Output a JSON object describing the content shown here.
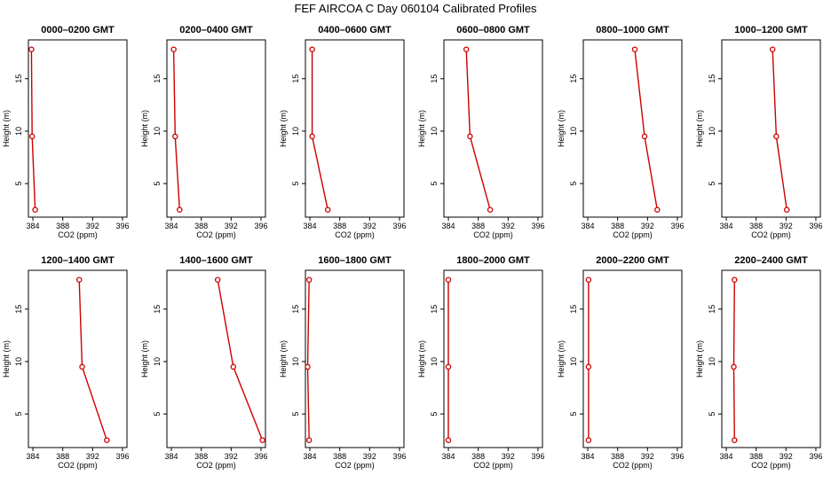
{
  "figure": {
    "title": "FEF AIRCOA C  Day 060104  Calibrated Profiles"
  },
  "colors": {
    "series": "#cc0000",
    "axis": "#000000"
  },
  "chart_data": [
    {
      "type": "line",
      "title": "0000–0200 GMT",
      "xlabel": "CO2 (ppm)",
      "ylabel": "Height (m)",
      "xlim": [
        383.4,
        396.6
      ],
      "ylim": [
        1.8,
        18.7
      ],
      "xticks": [
        "384",
        "388",
        "392",
        "396"
      ],
      "yticks": [
        "5",
        "10",
        "15"
      ],
      "series": [
        {
          "x": [
            384.3,
            383.9,
            383.8
          ],
          "y": [
            2.5,
            9.5,
            17.8
          ]
        }
      ]
    },
    {
      "type": "line",
      "title": "0200–0400 GMT",
      "xlabel": "CO2 (ppm)",
      "ylabel": "Height (m)",
      "xlim": [
        383.4,
        396.6
      ],
      "ylim": [
        1.8,
        18.7
      ],
      "xticks": [
        "384",
        "388",
        "392",
        "396"
      ],
      "yticks": [
        "5",
        "10",
        "15"
      ],
      "series": [
        {
          "x": [
            385.1,
            384.5,
            384.3
          ],
          "y": [
            2.5,
            9.5,
            17.8
          ]
        }
      ]
    },
    {
      "type": "line",
      "title": "0400–0600 GMT",
      "xlabel": "CO2 (ppm)",
      "ylabel": "Height (m)",
      "xlim": [
        383.4,
        396.6
      ],
      "ylim": [
        1.8,
        18.7
      ],
      "xticks": [
        "384",
        "388",
        "392",
        "396"
      ],
      "yticks": [
        "5",
        "10",
        "15"
      ],
      "series": [
        {
          "x": [
            386.4,
            384.3,
            384.3
          ],
          "y": [
            2.5,
            9.5,
            17.8
          ]
        }
      ]
    },
    {
      "type": "line",
      "title": "0600–0800 GMT",
      "xlabel": "CO2 (ppm)",
      "ylabel": "Height (m)",
      "xlim": [
        383.4,
        396.6
      ],
      "ylim": [
        1.8,
        18.7
      ],
      "xticks": [
        "384",
        "388",
        "392",
        "396"
      ],
      "yticks": [
        "5",
        "10",
        "15"
      ],
      "series": [
        {
          "x": [
            389.6,
            386.9,
            386.4
          ],
          "y": [
            2.5,
            9.5,
            17.8
          ]
        }
      ]
    },
    {
      "type": "line",
      "title": "0800–1000 GMT",
      "xlabel": "CO2 (ppm)",
      "ylabel": "Height (m)",
      "xlim": [
        383.4,
        396.6
      ],
      "ylim": [
        1.8,
        18.7
      ],
      "xticks": [
        "384",
        "388",
        "392",
        "396"
      ],
      "yticks": [
        "5",
        "10",
        "15"
      ],
      "series": [
        {
          "x": [
            393.3,
            391.6,
            390.3
          ],
          "y": [
            2.5,
            9.5,
            17.8
          ]
        }
      ]
    },
    {
      "type": "line",
      "title": "1000–1200 GMT",
      "xlabel": "CO2 (ppm)",
      "ylabel": "Height (m)",
      "xlim": [
        383.4,
        396.6
      ],
      "ylim": [
        1.8,
        18.7
      ],
      "xticks": [
        "384",
        "388",
        "392",
        "396"
      ],
      "yticks": [
        "5",
        "10",
        "15"
      ],
      "series": [
        {
          "x": [
            392.1,
            390.7,
            390.2
          ],
          "y": [
            2.5,
            9.5,
            17.8
          ]
        }
      ]
    },
    {
      "type": "line",
      "title": "1200–1400 GMT",
      "xlabel": "CO2 (ppm)",
      "ylabel": "Height (m)",
      "xlim": [
        383.4,
        396.6
      ],
      "ylim": [
        1.8,
        18.7
      ],
      "xticks": [
        "384",
        "388",
        "392",
        "396"
      ],
      "yticks": [
        "5",
        "10",
        "15"
      ],
      "series": [
        {
          "x": [
            393.9,
            390.6,
            390.2
          ],
          "y": [
            2.5,
            9.5,
            17.8
          ]
        }
      ]
    },
    {
      "type": "line",
      "title": "1400–1600 GMT",
      "xlabel": "CO2 (ppm)",
      "ylabel": "Height (m)",
      "xlim": [
        383.4,
        396.6
      ],
      "ylim": [
        1.8,
        18.7
      ],
      "xticks": [
        "384",
        "388",
        "392",
        "396"
      ],
      "yticks": [
        "5",
        "10",
        "15"
      ],
      "series": [
        {
          "x": [
            396.2,
            392.3,
            390.2
          ],
          "y": [
            2.5,
            9.5,
            17.8
          ]
        }
      ]
    },
    {
      "type": "line",
      "title": "1600–1800 GMT",
      "xlabel": "CO2 (ppm)",
      "ylabel": "Height (m)",
      "xlim": [
        383.4,
        396.6
      ],
      "ylim": [
        1.8,
        18.7
      ],
      "xticks": [
        "384",
        "388",
        "392",
        "396"
      ],
      "yticks": [
        "5",
        "10",
        "15"
      ],
      "series": [
        {
          "x": [
            383.9,
            383.7,
            383.9
          ],
          "y": [
            2.5,
            9.5,
            17.8
          ]
        }
      ]
    },
    {
      "type": "line",
      "title": "1800–2000 GMT",
      "xlabel": "CO2 (ppm)",
      "ylabel": "Height (m)",
      "xlim": [
        383.4,
        396.6
      ],
      "ylim": [
        1.8,
        18.7
      ],
      "xticks": [
        "384",
        "388",
        "392",
        "396"
      ],
      "yticks": [
        "5",
        "10",
        "15"
      ],
      "series": [
        {
          "x": [
            384.0,
            384.0,
            384.0
          ],
          "y": [
            2.5,
            9.5,
            17.8
          ]
        }
      ]
    },
    {
      "type": "line",
      "title": "2000–2200 GMT",
      "xlabel": "CO2 (ppm)",
      "ylabel": "Height (m)",
      "xlim": [
        383.4,
        396.6
      ],
      "ylim": [
        1.8,
        18.7
      ],
      "xticks": [
        "384",
        "388",
        "392",
        "396"
      ],
      "yticks": [
        "5",
        "10",
        "15"
      ],
      "series": [
        {
          "x": [
            384.1,
            384.1,
            384.1
          ],
          "y": [
            2.5,
            9.5,
            17.8
          ]
        }
      ]
    },
    {
      "type": "line",
      "title": "2200–2400 GMT",
      "xlabel": "CO2 (ppm)",
      "ylabel": "Height (m)",
      "xlim": [
        383.4,
        396.6
      ],
      "ylim": [
        1.8,
        18.7
      ],
      "xticks": [
        "384",
        "388",
        "392",
        "396"
      ],
      "yticks": [
        "5",
        "10",
        "15"
      ],
      "series": [
        {
          "x": [
            385.1,
            385.0,
            385.1
          ],
          "y": [
            2.5,
            9.5,
            17.8
          ]
        }
      ]
    }
  ]
}
